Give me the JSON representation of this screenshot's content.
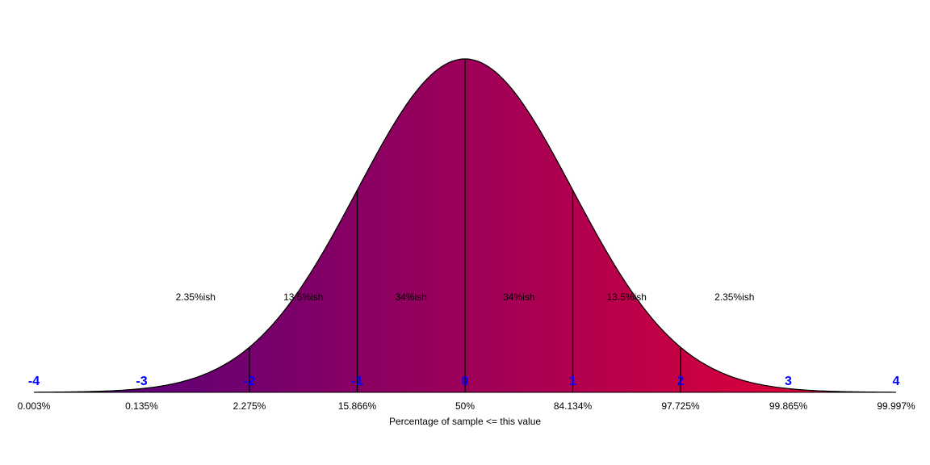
{
  "chart_data": {
    "type": "area",
    "xlabel": "Percentage of sample <= this value",
    "xlim": [
      -4,
      4
    ],
    "curve": "standard normal density",
    "sigma_ticks": [
      {
        "sigma": -4,
        "label": "-4",
        "percentile": "0.003%"
      },
      {
        "sigma": -3,
        "label": "-3",
        "percentile": "0.135%"
      },
      {
        "sigma": -2,
        "label": "-2",
        "percentile": "2.275%"
      },
      {
        "sigma": -1,
        "label": "-1",
        "percentile": "15.866%"
      },
      {
        "sigma": 0,
        "label": "0",
        "percentile": "50%"
      },
      {
        "sigma": 1,
        "label": "1",
        "percentile": "84.134%"
      },
      {
        "sigma": 2,
        "label": "2",
        "percentile": "97.725%"
      },
      {
        "sigma": 3,
        "label": "3",
        "percentile": "99.865%"
      },
      {
        "sigma": 4,
        "label": "4",
        "percentile": "99.997%"
      }
    ],
    "regions": [
      {
        "center": -2.5,
        "label": "2.35%ish"
      },
      {
        "center": -1.5,
        "label": "13.5%ish"
      },
      {
        "center": -0.5,
        "label": "34%ish"
      },
      {
        "center": 0.5,
        "label": "34%ish"
      },
      {
        "center": 1.5,
        "label": "13.5%ish"
      },
      {
        "center": 2.5,
        "label": "2.35%ish"
      }
    ],
    "divider_sigmas": [
      -2,
      -1,
      0,
      1,
      2
    ],
    "colors": {
      "gradient_start": "#4b0082",
      "gradient_end": "#ee0030",
      "sigma_label": "#0000ff",
      "outline": "#000000"
    }
  }
}
